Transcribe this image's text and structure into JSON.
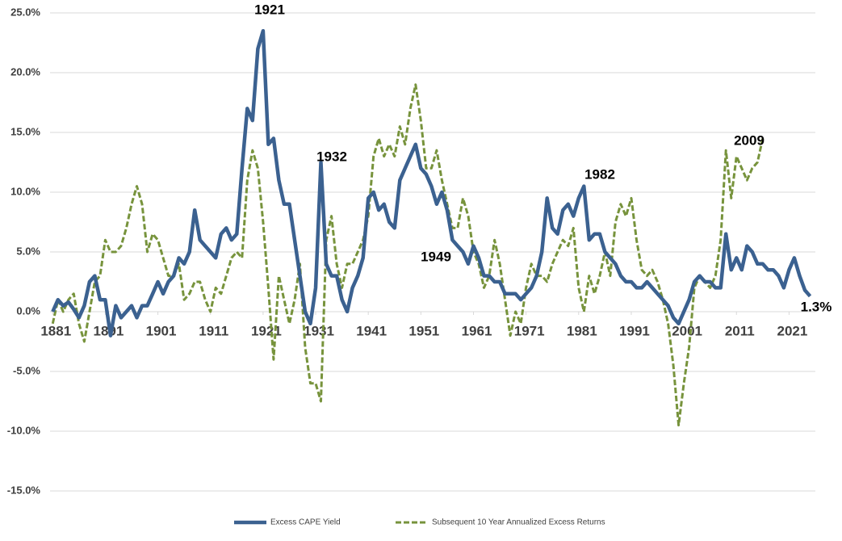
{
  "chart_data": {
    "type": "line",
    "x": [
      1881,
      1882,
      1883,
      1884,
      1885,
      1886,
      1887,
      1888,
      1889,
      1890,
      1891,
      1892,
      1893,
      1894,
      1895,
      1896,
      1897,
      1898,
      1899,
      1900,
      1901,
      1902,
      1903,
      1904,
      1905,
      1906,
      1907,
      1908,
      1909,
      1910,
      1911,
      1912,
      1913,
      1914,
      1915,
      1916,
      1917,
      1918,
      1919,
      1920,
      1921,
      1922,
      1923,
      1924,
      1925,
      1926,
      1927,
      1928,
      1929,
      1930,
      1931,
      1932,
      1933,
      1934,
      1935,
      1936,
      1937,
      1938,
      1939,
      1940,
      1941,
      1942,
      1943,
      1944,
      1945,
      1946,
      1947,
      1948,
      1949,
      1950,
      1951,
      1952,
      1953,
      1954,
      1955,
      1956,
      1957,
      1958,
      1959,
      1960,
      1961,
      1962,
      1963,
      1964,
      1965,
      1966,
      1967,
      1968,
      1969,
      1970,
      1971,
      1972,
      1973,
      1974,
      1975,
      1976,
      1977,
      1978,
      1979,
      1980,
      1981,
      1982,
      1983,
      1984,
      1985,
      1986,
      1987,
      1988,
      1989,
      1990,
      1991,
      1992,
      1993,
      1994,
      1995,
      1996,
      1997,
      1998,
      1999,
      2000,
      2001,
      2002,
      2003,
      2004,
      2005,
      2006,
      2007,
      2008,
      2009,
      2010,
      2011,
      2012,
      2013,
      2014,
      2015,
      2016,
      2017,
      2018,
      2019,
      2020,
      2021,
      2022,
      2023,
      2024,
      2025
    ],
    "series": [
      {
        "name": "Excess CAPE Yield",
        "color": "#3b6190",
        "dashed": false,
        "values": [
          0,
          1,
          0.5,
          0.8,
          0.2,
          -0.5,
          0.5,
          2.5,
          3,
          1,
          1,
          -2,
          0.5,
          -0.5,
          0,
          0.5,
          -0.5,
          0.5,
          0.5,
          1.5,
          2.5,
          1.5,
          2.5,
          3,
          4.5,
          4,
          5,
          8.5,
          6,
          5.5,
          5,
          4.5,
          6.5,
          7,
          6,
          6.5,
          12,
          17,
          16,
          22,
          23.5,
          14,
          14.5,
          11,
          9,
          9,
          6,
          3,
          0,
          -1,
          2,
          12.5,
          4,
          3,
          3,
          1,
          0,
          2,
          3,
          4.5,
          9.5,
          10,
          8.5,
          9,
          7.5,
          7,
          11,
          12,
          13,
          14,
          12,
          11.5,
          10.5,
          9,
          10,
          8.5,
          6,
          5.5,
          5,
          4,
          5.5,
          4.5,
          3,
          3,
          2.5,
          2.5,
          1.5,
          1.5,
          1.5,
          1,
          1.5,
          2,
          3,
          5,
          9.5,
          7,
          6.5,
          8.5,
          9,
          8,
          9.5,
          10.5,
          6,
          6.5,
          6.5,
          5,
          4.5,
          4,
          3,
          2.5,
          2.5,
          2,
          2,
          2.5,
          2,
          1.5,
          1,
          0.5,
          -0.5,
          -1,
          0,
          1,
          2.5,
          3,
          2.5,
          2.5,
          2,
          2,
          6.5,
          3.5,
          4.5,
          3.5,
          5.5,
          5,
          4,
          4,
          3.5,
          3.5,
          3,
          2,
          3.5,
          4.5,
          3,
          1.8,
          1.3
        ]
      },
      {
        "name": "Subsequent 10 Year Annualized Excess Returns",
        "color": "#77933c",
        "dashed": true,
        "values": [
          -1,
          1,
          0,
          1,
          1.5,
          -1,
          -2.5,
          0,
          2.5,
          3,
          6,
          5,
          5,
          5.5,
          7,
          9,
          10.5,
          9,
          5,
          6.5,
          6,
          4.5,
          3,
          3,
          4,
          1,
          1.5,
          2.5,
          2.5,
          1,
          0,
          2,
          1.5,
          3,
          4.5,
          5,
          4.5,
          11,
          13.5,
          12,
          7.5,
          2,
          -4,
          3,
          1,
          -1,
          1,
          4,
          -3,
          -6,
          -6,
          -7.5,
          6,
          8,
          4,
          2,
          4,
          4,
          5,
          6,
          8,
          13,
          14.5,
          13,
          14,
          13,
          15.5,
          14,
          17,
          19,
          16,
          12,
          12,
          13.5,
          11,
          9,
          7,
          7,
          9.5,
          8,
          5,
          4,
          2,
          3,
          6,
          4,
          1,
          -2,
          0,
          -1,
          2,
          4,
          3,
          3,
          2.5,
          4,
          5,
          6,
          5.5,
          7,
          2,
          0,
          3,
          1.5,
          3,
          5,
          3,
          7.5,
          9,
          8,
          9.5,
          6,
          3.5,
          3,
          3.5,
          2.5,
          1,
          -1,
          -4.5,
          -9.5,
          -6,
          -3,
          2,
          3,
          2.5,
          2,
          3,
          6,
          13.5,
          9.5,
          13,
          12,
          11,
          12,
          12.5,
          14.5,
          null,
          null,
          null,
          null,
          null,
          null,
          null,
          null,
          null
        ]
      }
    ],
    "xlim": [
      1880.5,
      2026
    ],
    "xticks": [
      1881,
      1891,
      1901,
      1911,
      1921,
      1931,
      1941,
      1951,
      1961,
      1971,
      1981,
      1991,
      2001,
      2011,
      2021
    ],
    "ylim": [
      -15,
      25
    ],
    "yticks": [
      {
        "value": -15,
        "label": "-15.0%"
      },
      {
        "value": -10,
        "label": "-10.0%"
      },
      {
        "value": -5,
        "label": "-5.0%"
      },
      {
        "value": 0,
        "label": "0.0%"
      },
      {
        "value": 5,
        "label": "5.0%"
      },
      {
        "value": 10,
        "label": "10.0%"
      },
      {
        "value": 15,
        "label": "15.0%"
      },
      {
        "value": 20,
        "label": "20.0%"
      },
      {
        "value": 25,
        "label": "25.0%"
      }
    ],
    "grid": true,
    "legend": "bottom",
    "annotations": [
      "1921",
      "1932",
      "1949",
      "1982",
      "2009",
      "1.3%"
    ]
  }
}
